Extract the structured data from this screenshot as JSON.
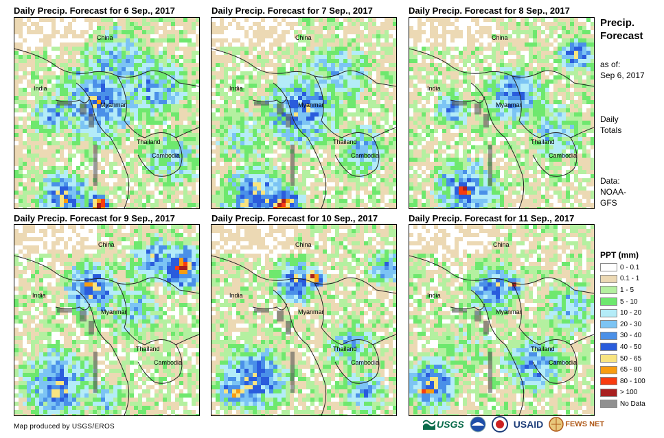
{
  "panels": [
    {
      "title": "Daily Precip. Forecast for 6 Sep., 2017"
    },
    {
      "title": "Daily Precip. Forecast for 7 Sep., 2017"
    },
    {
      "title": "Daily Precip. Forecast for 8 Sep., 2017"
    },
    {
      "title": "Daily Precip. Forecast for 9 Sep., 2017"
    },
    {
      "title": "Daily Precip. Forecast for 10 Sep., 2017"
    },
    {
      "title": "Daily Precip. Forecast for 11 Sep., 2017"
    }
  ],
  "map_labels": {
    "china": "China",
    "india": "India",
    "myanmar": "Myanmar",
    "thailand": "Thailand",
    "cambodia": "Cambodia"
  },
  "sidebar": {
    "title_line1": "Precip.",
    "title_line2": "Forecast",
    "asof_line1": "as of:",
    "asof_line2": "Sep 6, 2017",
    "totals_line1": "Daily",
    "totals_line2": "Totals",
    "data_line1": "Data:",
    "data_line2": "NOAA-",
    "data_line3": "GFS"
  },
  "legend": {
    "title": "PPT (mm)",
    "items": [
      {
        "label": "0 - 0.1",
        "color": "#ffffff"
      },
      {
        "label": "0.1 - 1",
        "color": "#ecd9b4"
      },
      {
        "label": "1 - 5",
        "color": "#b4f0a0"
      },
      {
        "label": "5 - 10",
        "color": "#6ee86e"
      },
      {
        "label": "10 - 20",
        "color": "#b4ecf8"
      },
      {
        "label": "20 - 30",
        "color": "#7cc4f4"
      },
      {
        "label": "30 - 40",
        "color": "#4a90e8"
      },
      {
        "label": "40 - 50",
        "color": "#2a5cdc"
      },
      {
        "label": "50 - 65",
        "color": "#f8e480"
      },
      {
        "label": "65 - 80",
        "color": "#f89c10"
      },
      {
        "label": "80 - 100",
        "color": "#f83c10"
      },
      {
        "label": "> 100",
        "color": "#a82020"
      },
      {
        "label": "No Data",
        "color": "#909090"
      }
    ]
  },
  "footer": {
    "credit": "Map produced by USGS/EROS"
  },
  "logos": {
    "usgs": "USGS",
    "usaid": "USAID",
    "fewsnet": "FEWS NET"
  }
}
